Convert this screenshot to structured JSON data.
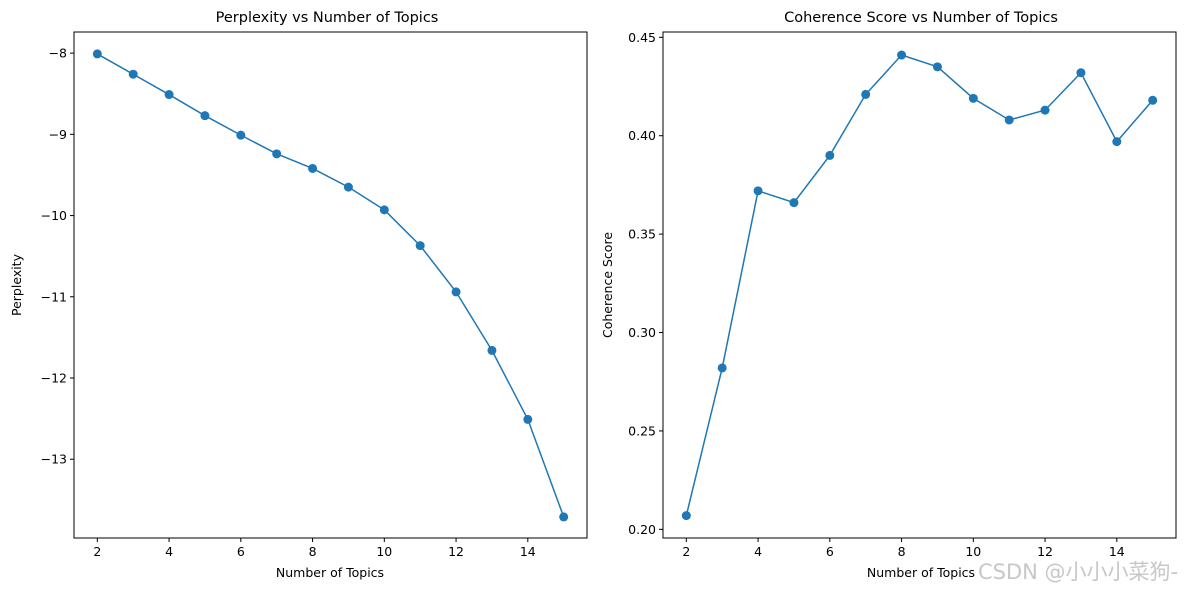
{
  "colors": {
    "series": "#1f77b4",
    "axis": "#000000",
    "background": "#ffffff"
  },
  "watermark": "CSDN @小小小菜狗-",
  "chart_data": [
    {
      "type": "line",
      "title": "Perplexity vs Number of Topics",
      "xlabel": "Number of Topics",
      "ylabel": "Perplexity",
      "xlim": [
        1.35,
        15.65
      ],
      "ylim": [
        -13.97,
        -7.74
      ],
      "xticks": [
        2,
        4,
        6,
        8,
        10,
        12,
        14
      ],
      "yticks": [
        -8,
        -9,
        -10,
        -11,
        -12,
        -13
      ],
      "ytick_labels": [
        "−8",
        "−9",
        "−10",
        "−11",
        "−12",
        "−13"
      ],
      "grid": false,
      "marker": "circle",
      "x": [
        2,
        3,
        4,
        5,
        6,
        7,
        8,
        9,
        10,
        11,
        12,
        13,
        14,
        15
      ],
      "series": [
        {
          "values": [
            -8.01,
            -8.26,
            -8.51,
            -8.77,
            -9.01,
            -9.24,
            -9.42,
            -9.65,
            -9.93,
            -10.37,
            -10.94,
            -11.66,
            -12.51,
            -13.71
          ]
        }
      ]
    },
    {
      "type": "line",
      "title": "Coherence Score vs Number of Topics",
      "xlabel": "Number of Topics",
      "ylabel": "Coherence Score",
      "xlim": [
        1.35,
        15.65
      ],
      "ylim": [
        0.1956,
        0.4527
      ],
      "xticks": [
        2,
        4,
        6,
        8,
        10,
        12,
        14
      ],
      "yticks": [
        0.2,
        0.25,
        0.3,
        0.35,
        0.4,
        0.45
      ],
      "ytick_labels": [
        "0.20",
        "0.25",
        "0.30",
        "0.35",
        "0.40",
        "0.45"
      ],
      "grid": false,
      "marker": "circle",
      "x": [
        2,
        3,
        4,
        5,
        6,
        7,
        8,
        9,
        10,
        11,
        12,
        13,
        14,
        15
      ],
      "series": [
        {
          "values": [
            0.207,
            0.282,
            0.372,
            0.366,
            0.39,
            0.421,
            0.441,
            0.435,
            0.419,
            0.408,
            0.413,
            0.432,
            0.397,
            0.418
          ]
        }
      ]
    }
  ]
}
